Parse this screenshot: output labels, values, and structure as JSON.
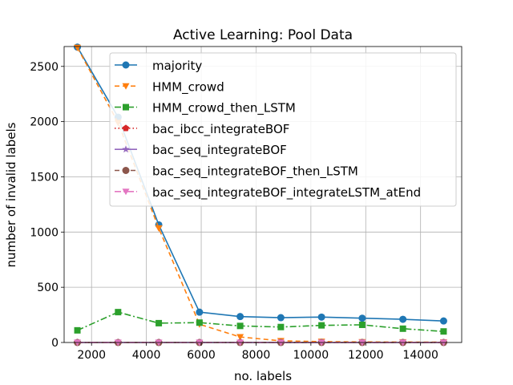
{
  "chart_data": {
    "type": "line",
    "title": "Active Learning: Pool Data",
    "xlabel": "no. labels",
    "ylabel": "number of invalid labels",
    "xlim": [
      1000,
      15500
    ],
    "ylim": [
      0,
      2680
    ],
    "xticks": [
      2000,
      4000,
      6000,
      8000,
      10000,
      12000,
      14000
    ],
    "yticks": [
      0,
      500,
      1000,
      1500,
      2000,
      2500
    ],
    "grid": true,
    "legend_position": "top-right",
    "x": [
      1484,
      2968,
      4452,
      5936,
      7420,
      8904,
      10388,
      11872,
      13356,
      14840
    ],
    "series": [
      {
        "name": "majority",
        "color": "#1f77b4",
        "linestyle": "solid",
        "marker": "circle",
        "values": [
          2675,
          2040,
          1065,
          275,
          235,
          225,
          230,
          220,
          210,
          195
        ]
      },
      {
        "name": "HMM_crowd",
        "color": "#ff7f0e",
        "linestyle": "dashed",
        "marker": "triangle-down",
        "values": [
          2670,
          1990,
          1035,
          165,
          50,
          15,
          8,
          5,
          4,
          3
        ]
      },
      {
        "name": "HMM_crowd_then_LSTM",
        "color": "#2ca02c",
        "linestyle": "dashdot",
        "marker": "square",
        "values": [
          110,
          275,
          175,
          180,
          150,
          140,
          155,
          160,
          125,
          100
        ]
      },
      {
        "name": "bac_ibcc_integrateBOF",
        "color": "#d62728",
        "linestyle": "dotted",
        "marker": "pentagon",
        "values": [
          0,
          0,
          0,
          0,
          0,
          0,
          0,
          0,
          0,
          0
        ]
      },
      {
        "name": "bac_seq_integrateBOF",
        "color": "#9467bd",
        "linestyle": "solid",
        "marker": "star",
        "values": [
          0,
          0,
          0,
          0,
          0,
          0,
          0,
          0,
          0,
          0
        ]
      },
      {
        "name": "bac_seq_integrateBOF_then_LSTM",
        "color": "#8c564b",
        "linestyle": "dashed",
        "marker": "hexagon",
        "values": [
          0,
          0,
          0,
          0,
          0,
          0,
          0,
          0,
          0,
          0
        ]
      },
      {
        "name": "bac_seq_integrateBOF_integrateLSTM_atEnd",
        "color": "#e377c2",
        "linestyle": "dashdot",
        "marker": "triangle-down",
        "values": [
          0,
          0,
          0,
          0,
          0,
          0,
          0,
          0,
          0,
          0
        ]
      }
    ]
  }
}
